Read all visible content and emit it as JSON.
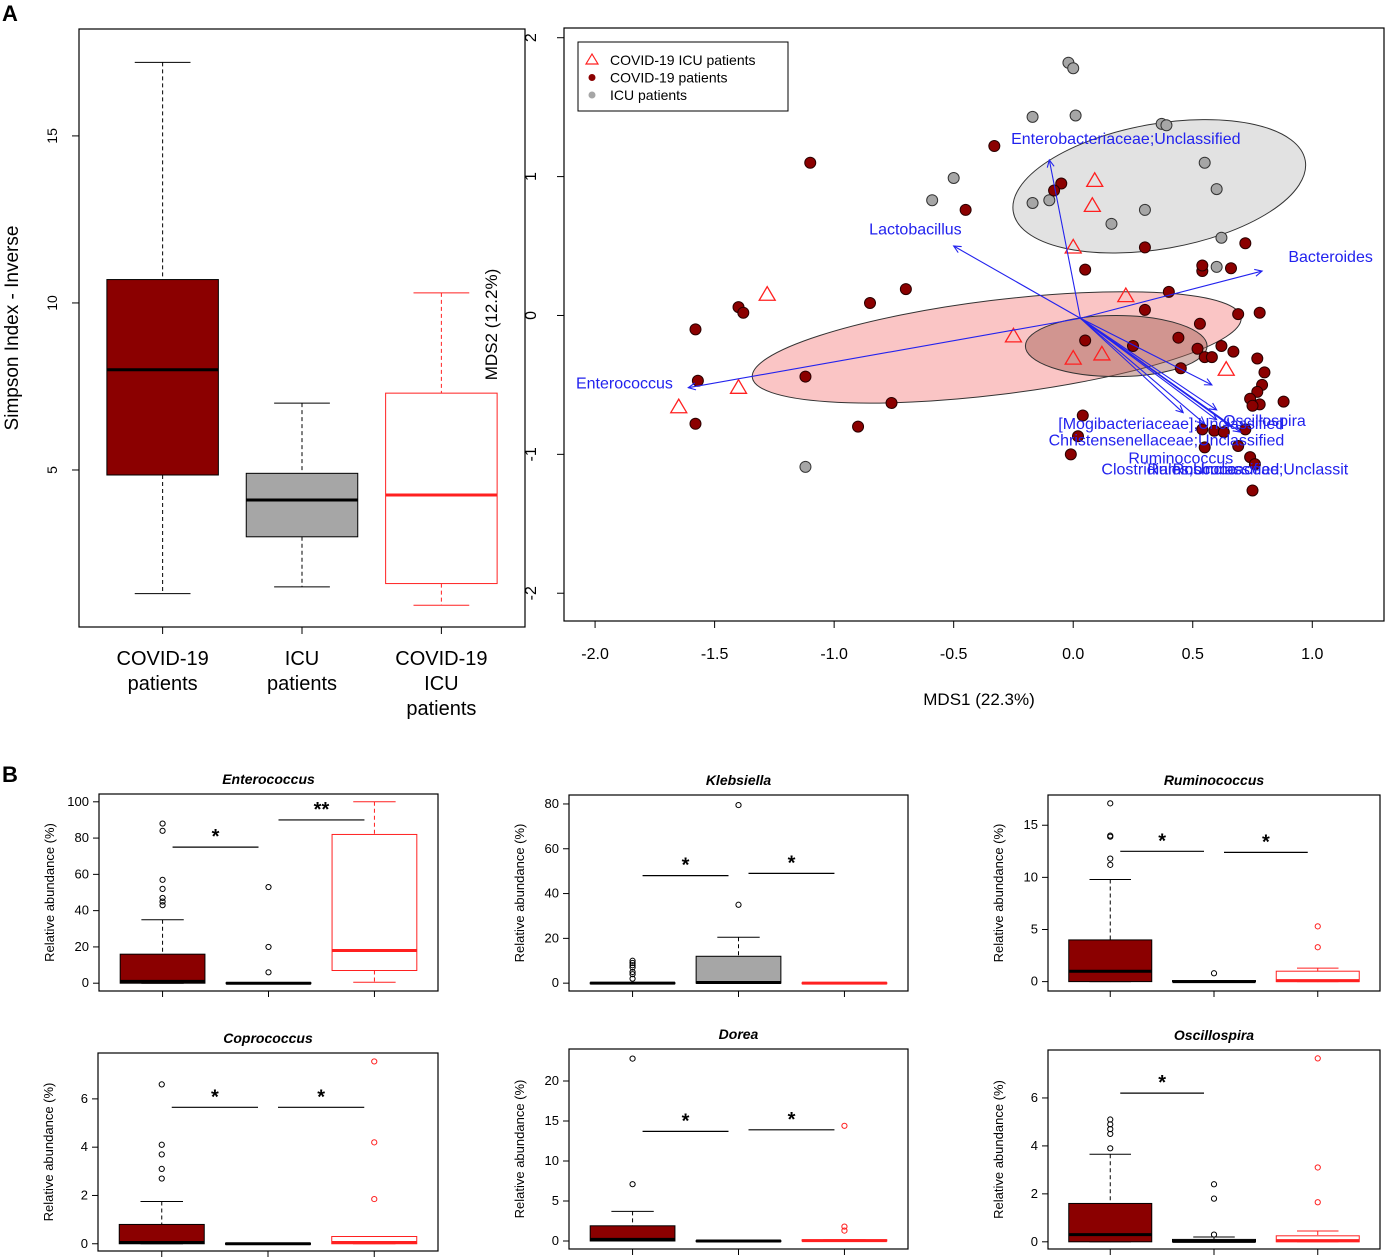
{
  "panel_labels": {
    "a": "A",
    "b": "B"
  },
  "colors": {
    "covid": "#8b0000",
    "icu": "#a6a6a6",
    "covid_icu": "#ff2020",
    "vector": "#2222ee"
  },
  "chart_data": [
    {
      "id": "simpson",
      "type": "box",
      "title": "",
      "ylabel": "Simpson Index - Inverse",
      "ylim": [
        0.3,
        18.2
      ],
      "yticks": [
        5,
        10,
        15
      ],
      "groups": [
        {
          "label_lines": [
            "COVID-19",
            "patients"
          ],
          "color": "covid",
          "style": "filled",
          "whisker_low": 1.3,
          "q1": 4.85,
          "median": 8.0,
          "q3": 10.7,
          "whisker_high": 17.2,
          "outliers": []
        },
        {
          "label_lines": [
            "ICU",
            "patients"
          ],
          "color": "icu",
          "style": "filled",
          "whisker_low": 1.5,
          "q1": 3.0,
          "median": 4.1,
          "q3": 4.9,
          "whisker_high": 7.0,
          "outliers": []
        },
        {
          "label_lines": [
            "COVID-19",
            "ICU",
            "patients"
          ],
          "color": "covid_icu",
          "style": "open",
          "whisker_low": 0.95,
          "q1": 1.6,
          "median": 4.25,
          "q3": 7.3,
          "whisker_high": 10.3,
          "outliers": []
        }
      ]
    },
    {
      "id": "mds",
      "type": "scatter",
      "xlabel": "MDS1 (22.3%)",
      "ylabel": "MDS2 (12.2%)",
      "xlim": [
        -2.13,
        1.3
      ],
      "ylim": [
        -2.2,
        2.07
      ],
      "xticks": [
        "-2.0",
        "-1.5",
        "-1.0",
        "-0.5",
        "0.0",
        "0.5",
        "1.0"
      ],
      "yticks": [
        "-2",
        "-1",
        "0",
        "1",
        "2"
      ],
      "legend": {
        "position": "top-left",
        "entries": [
          {
            "label": "COVID-19 ICU patients",
            "series": "covid_icu"
          },
          {
            "label": "COVID-19 patients",
            "series": "covid"
          },
          {
            "label": "ICU patients",
            "series": "icu"
          }
        ]
      },
      "ellipses": [
        {
          "series": "icu",
          "cx": 0.36,
          "cy": 0.93,
          "rx": 0.62,
          "ry": 0.45,
          "angle": 10
        },
        {
          "series": "covid_icu",
          "cx": -0.32,
          "cy": -0.23,
          "rx": 1.03,
          "ry": 0.34,
          "angle": 7
        },
        {
          "series": "covid",
          "cx": 0.18,
          "cy": -0.22,
          "rx": 0.38,
          "ry": 0.22,
          "angle": 0
        }
      ],
      "vectors": [
        {
          "label": "Enterobacteriaceae;Unclassified",
          "x": -0.1,
          "y": 1.12,
          "label_x": 0.22,
          "label_y": 1.27,
          "anchor": "middle"
        },
        {
          "label": "Lactobacillus",
          "x": -0.5,
          "y": 0.5,
          "label_x": -0.66,
          "label_y": 0.62,
          "anchor": "middle"
        },
        {
          "label": "Bacteroides",
          "x": 0.79,
          "y": 0.32,
          "label_x": 0.9,
          "label_y": 0.42,
          "anchor": "start"
        },
        {
          "label": "Enterococcus",
          "x": -1.61,
          "y": -0.52,
          "label_x": -2.08,
          "label_y": -0.49,
          "anchor": "start"
        },
        {
          "label": "[Mogibacteriaceae];Unclassified",
          "x": 0.46,
          "y": -0.7,
          "label_x": 0.41,
          "label_y": -0.78,
          "anchor": "middle"
        },
        {
          "label": "Oscillospira",
          "x": 0.6,
          "y": -0.68,
          "label_x": 0.8,
          "label_y": -0.76,
          "anchor": "middle"
        },
        {
          "label": "Christensenellaceae;Unclassified",
          "x": 0.6,
          "y": -0.75,
          "label_x": 0.39,
          "label_y": -0.9,
          "anchor": "middle"
        },
        {
          "label": "Ruminococcus",
          "x": 0.55,
          "y": -0.78,
          "label_x": 0.45,
          "label_y": -1.03,
          "anchor": "middle"
        },
        {
          "label": "Clostridiales;Unclassified",
          "x": 0.66,
          "y": -0.8,
          "label_x": 0.49,
          "label_y": -1.11,
          "anchor": "middle"
        },
        {
          "label": "Rosburia",
          "x": 0.7,
          "y": -0.84,
          "label_x": 0.55,
          "label_y": -1.11,
          "anchor": "middle"
        },
        {
          "label": "Ruminococcaceae;Unclassit",
          "x": 0.58,
          "y": -0.5,
          "label_x": 0.73,
          "label_y": -1.11,
          "anchor": "middle"
        }
      ],
      "series": {
        "covid": [
          [
            -0.33,
            1.22
          ],
          [
            -1.1,
            1.1
          ],
          [
            -0.05,
            0.95
          ],
          [
            -0.08,
            0.9
          ],
          [
            -0.45,
            0.76
          ],
          [
            -1.4,
            0.06
          ],
          [
            -1.38,
            0.02
          ],
          [
            -0.85,
            0.09
          ],
          [
            -0.7,
            0.19
          ],
          [
            -1.58,
            -0.1
          ],
          [
            -1.57,
            -0.47
          ],
          [
            -1.12,
            -0.44
          ],
          [
            -0.76,
            -0.63
          ],
          [
            -0.9,
            -0.8
          ],
          [
            -1.58,
            -0.78
          ],
          [
            0.05,
            0.33
          ],
          [
            0.3,
            0.49
          ],
          [
            0.4,
            0.17
          ],
          [
            0.3,
            0.04
          ],
          [
            0.44,
            -0.16
          ],
          [
            0.52,
            -0.24
          ],
          [
            0.45,
            -0.38
          ],
          [
            0.55,
            -0.3
          ],
          [
            0.58,
            -0.3
          ],
          [
            0.54,
            0.32
          ],
          [
            0.54,
            0.36
          ],
          [
            0.66,
            0.34
          ],
          [
            0.72,
            0.52
          ],
          [
            0.78,
            0.02
          ],
          [
            0.69,
            0.01
          ],
          [
            0.53,
            -0.06
          ],
          [
            0.62,
            -0.22
          ],
          [
            0.67,
            -0.26
          ],
          [
            0.77,
            -0.31
          ],
          [
            0.8,
            -0.41
          ],
          [
            0.79,
            -0.5
          ],
          [
            0.77,
            -0.55
          ],
          [
            0.74,
            -0.6
          ],
          [
            0.78,
            -0.64
          ],
          [
            0.75,
            -0.65
          ],
          [
            0.88,
            -0.62
          ],
          [
            0.54,
            -0.82
          ],
          [
            0.59,
            -0.83
          ],
          [
            0.63,
            -0.84
          ],
          [
            0.72,
            -0.82
          ],
          [
            0.55,
            -0.95
          ],
          [
            0.69,
            -0.94
          ],
          [
            0.74,
            -1.02
          ],
          [
            0.76,
            -1.07
          ],
          [
            0.75,
            -1.26
          ],
          [
            0.04,
            -0.72
          ],
          [
            0.02,
            -0.87
          ],
          [
            -0.01,
            -1.0
          ],
          [
            0.05,
            -0.18
          ],
          [
            0.25,
            -0.22
          ]
        ],
        "icu": [
          [
            -0.02,
            1.82
          ],
          [
            0.0,
            1.78
          ],
          [
            0.01,
            1.44
          ],
          [
            -0.17,
            1.43
          ],
          [
            0.37,
            1.38
          ],
          [
            0.39,
            1.37
          ],
          [
            0.55,
            1.1
          ],
          [
            0.6,
            0.91
          ],
          [
            -0.5,
            0.99
          ],
          [
            -0.59,
            0.83
          ],
          [
            -0.17,
            0.81
          ],
          [
            -0.1,
            0.83
          ],
          [
            0.16,
            0.66
          ],
          [
            0.3,
            0.76
          ],
          [
            0.62,
            0.56
          ],
          [
            0.6,
            0.35
          ],
          [
            -1.12,
            -1.09
          ]
        ],
        "covid_icu": [
          [
            -1.28,
            0.15
          ],
          [
            -1.65,
            -0.66
          ],
          [
            -1.4,
            -0.52
          ],
          [
            -0.25,
            -0.15
          ],
          [
            0.0,
            0.49
          ],
          [
            0.09,
            0.97
          ],
          [
            0.08,
            0.79
          ],
          [
            0.22,
            0.14
          ],
          [
            0.12,
            -0.28
          ],
          [
            0.0,
            -0.31
          ],
          [
            0.64,
            -0.39
          ]
        ]
      }
    },
    {
      "id": "enterococcus",
      "type": "box",
      "title": "Enterococcus",
      "ylabel": "Relative abundance (%)",
      "ylim": [
        -4.3,
        104.3
      ],
      "yticks": [
        0,
        20,
        40,
        60,
        80,
        100
      ],
      "groups": [
        {
          "color": "covid",
          "style": "filled",
          "whisker_low": 0,
          "q1": 0,
          "median": 1,
          "q3": 16,
          "whisker_high": 35,
          "outliers": [
            43,
            45,
            47,
            52,
            57,
            84,
            88
          ]
        },
        {
          "color": "icu",
          "style": "filled",
          "whisker_low": 0,
          "q1": 0,
          "median": 0,
          "q3": 0.3,
          "whisker_high": 0.3,
          "outliers": [
            6,
            20,
            53
          ]
        },
        {
          "color": "covid_icu",
          "style": "open",
          "whisker_low": 0.5,
          "q1": 7,
          "median": 18,
          "q3": 82,
          "whisker_high": 100,
          "outliers": []
        }
      ],
      "sig": [
        {
          "from": 0,
          "to": 1,
          "y": 75,
          "label": "*"
        },
        {
          "from": 1,
          "to": 2,
          "y": 90,
          "label": "**"
        }
      ]
    },
    {
      "id": "klebsiella",
      "type": "box",
      "title": "Klebsiella",
      "ylabel": "Relative abundance (%)",
      "ylim": [
        -3.5,
        84
      ],
      "yticks": [
        0,
        20,
        40,
        60,
        80
      ],
      "groups": [
        {
          "color": "covid",
          "style": "filled",
          "whisker_low": 0,
          "q1": 0,
          "median": 0,
          "q3": 0.2,
          "whisker_high": 0.2,
          "outliers": [
            2,
            4,
            5,
            7,
            8,
            9,
            10
          ]
        },
        {
          "color": "icu",
          "style": "filled",
          "whisker_low": 0,
          "q1": 0,
          "median": 0.3,
          "q3": 12,
          "whisker_high": 20.5,
          "outliers": [
            35,
            79.5
          ]
        },
        {
          "color": "covid_icu",
          "style": "open",
          "whisker_low": 0,
          "q1": 0,
          "median": 0,
          "q3": 0.2,
          "whisker_high": 0.2,
          "outliers": []
        }
      ],
      "sig": [
        {
          "from": 0,
          "to": 1,
          "y": 48,
          "label": "*"
        },
        {
          "from": 1,
          "to": 2,
          "y": 49,
          "label": "*"
        }
      ]
    },
    {
      "id": "ruminococcus",
      "type": "box",
      "title": "Ruminococcus",
      "ylabel": "Relative abundance (%)",
      "ylim": [
        -0.9,
        17.9
      ],
      "yticks": [
        0,
        5,
        10,
        15
      ],
      "groups": [
        {
          "color": "covid",
          "style": "filled",
          "whisker_low": 0,
          "q1": 0,
          "median": 1,
          "q3": 4,
          "whisker_high": 9.8,
          "outliers": [
            11.2,
            11.8,
            13.9,
            14.0,
            17.1
          ]
        },
        {
          "color": "icu",
          "style": "filled",
          "whisker_low": 0,
          "q1": 0,
          "median": 0,
          "q3": 0.1,
          "whisker_high": 0.1,
          "outliers": [
            0.8
          ]
        },
        {
          "color": "covid_icu",
          "style": "open",
          "whisker_low": 0,
          "q1": 0,
          "median": 0.1,
          "q3": 1,
          "whisker_high": 1.3,
          "outliers": [
            3.3,
            5.3
          ]
        }
      ],
      "sig": [
        {
          "from": 0,
          "to": 1,
          "y": 12.5,
          "label": "*"
        },
        {
          "from": 1,
          "to": 2,
          "y": 12.4,
          "label": "*"
        }
      ]
    },
    {
      "id": "coprococcus",
      "type": "box",
      "title": "Coprococcus",
      "ylabel": "Relative abundance (%)",
      "ylim": [
        -0.3,
        7.9
      ],
      "yticks": [
        0,
        2,
        4,
        6
      ],
      "groups": [
        {
          "color": "covid",
          "style": "filled",
          "whisker_low": 0,
          "q1": 0,
          "median": 0.05,
          "q3": 0.8,
          "whisker_high": 1.75,
          "outliers": [
            2.7,
            3.1,
            3.7,
            4.1,
            6.6
          ]
        },
        {
          "color": "icu",
          "style": "filled",
          "whisker_low": 0,
          "q1": 0,
          "median": 0,
          "q3": 0.02,
          "whisker_high": 0.02,
          "outliers": []
        },
        {
          "color": "covid_icu",
          "style": "open",
          "whisker_low": 0,
          "q1": 0,
          "median": 0.05,
          "q3": 0.3,
          "whisker_high": 0.3,
          "outliers": [
            1.85,
            4.2,
            7.55
          ]
        }
      ],
      "sig": [
        {
          "from": 0,
          "to": 1,
          "y": 5.65,
          "label": "*"
        },
        {
          "from": 1,
          "to": 2,
          "y": 5.65,
          "label": "*"
        }
      ]
    },
    {
      "id": "dorea",
      "type": "box",
      "title": "Dorea",
      "ylabel": "Relative abundance (%)",
      "ylim": [
        -1.0,
        24.0
      ],
      "yticks": [
        0,
        5,
        10,
        15,
        20
      ],
      "groups": [
        {
          "color": "covid",
          "style": "filled",
          "whisker_low": 0,
          "q1": 0,
          "median": 0.2,
          "q3": 1.9,
          "whisker_high": 3.7,
          "outliers": [
            7.1,
            22.8
          ]
        },
        {
          "color": "icu",
          "style": "filled",
          "whisker_low": 0,
          "q1": 0,
          "median": 0,
          "q3": 0.05,
          "whisker_high": 0.05,
          "outliers": []
        },
        {
          "color": "covid_icu",
          "style": "open",
          "whisker_low": 0,
          "q1": 0,
          "median": 0.05,
          "q3": 0.15,
          "whisker_high": 0.15,
          "outliers": [
            1.3,
            1.8,
            14.4
          ]
        }
      ],
      "sig": [
        {
          "from": 0,
          "to": 1,
          "y": 13.7,
          "label": "*"
        },
        {
          "from": 1,
          "to": 2,
          "y": 13.9,
          "label": "*"
        }
      ]
    },
    {
      "id": "oscillospira",
      "type": "box",
      "title": "Oscillospira",
      "ylabel": "Relative abundance (%)",
      "ylim": [
        -0.3,
        8.0
      ],
      "yticks": [
        0,
        2,
        4,
        6
      ],
      "groups": [
        {
          "color": "covid",
          "style": "filled",
          "whisker_low": 0,
          "q1": 0,
          "median": 0.3,
          "q3": 1.6,
          "whisker_high": 3.65,
          "outliers": [
            3.9,
            4.5,
            4.7,
            4.9,
            5.1
          ]
        },
        {
          "color": "icu",
          "style": "filled",
          "whisker_low": 0,
          "q1": 0,
          "median": 0.02,
          "q3": 0.1,
          "whisker_high": 0.2,
          "outliers": [
            0.3,
            1.8,
            2.4
          ]
        },
        {
          "color": "covid_icu",
          "style": "open",
          "whisker_low": 0,
          "q1": 0,
          "median": 0.05,
          "q3": 0.25,
          "whisker_high": 0.45,
          "outliers": [
            1.65,
            3.1,
            7.65
          ]
        }
      ],
      "sig": [
        {
          "from": 0,
          "to": 1,
          "y": 6.2,
          "label": "*"
        }
      ]
    }
  ]
}
